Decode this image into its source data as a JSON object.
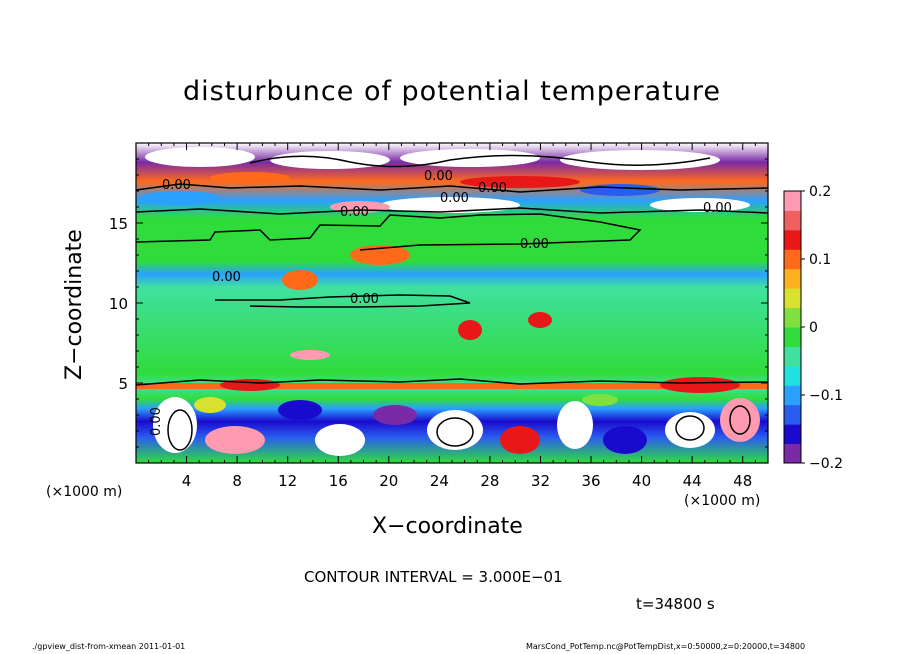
{
  "title": "disturbunce of potential temperature",
  "xlabel": "X−coordinate",
  "ylabel": "Z−coordinate",
  "x_unit_left": "(×1000 m)",
  "x_unit_right": "(×1000 m)",
  "contour_interval_text": "CONTOUR INTERVAL = 3.000E−01",
  "time_text": "t=34800 s",
  "footer_left": "./gpview_dist-from-xmean   2011-01-01",
  "footer_right": "MarsCond_PotTemp.nc@PotTempDist,x=0:50000,z=0:20000,t=34800",
  "chart_data": {
    "type": "heatmap",
    "title": "disturbunce of potential temperature",
    "xlabel": "X−coordinate",
    "ylabel": "Z−coordinate",
    "xlim": [
      0,
      50
    ],
    "ylim": [
      0,
      20
    ],
    "x_ticks": [
      4,
      8,
      12,
      16,
      20,
      24,
      28,
      32,
      36,
      40,
      44,
      48
    ],
    "y_ticks": [
      5,
      10,
      15
    ],
    "colorbar": {
      "vmin": -0.2,
      "vmax": 0.2,
      "ticks": [
        0.2,
        0.1,
        0,
        -0.1,
        -0.2
      ],
      "tick_labels": [
        "0.2",
        "0.1",
        "0",
        "−0.1",
        "−0.2"
      ],
      "colors": [
        "#7a2aa6",
        "#1a0acd",
        "#2a5cf0",
        "#2aa0ff",
        "#22e0e0",
        "#40e0a0",
        "#30dc3c",
        "#80e040",
        "#d8e030",
        "#ffb020",
        "#ff6a1a",
        "#e81818",
        "#f06060",
        "#ff9ab0"
      ]
    },
    "contour_labels": [
      "0.00",
      "0.00",
      "0.00",
      "0.00",
      "0.00",
      "0.00",
      "0.00",
      "0.00",
      "0.00",
      "0.00"
    ],
    "bands": [
      {
        "z": [
          0,
          4.6
        ],
        "value": "mixed -0.2..0.2"
      },
      {
        "z": [
          4.6,
          15.5
        ],
        "value": "~0"
      },
      {
        "z": [
          15.5,
          20
        ],
        "value": "mixed -0.2..0.2"
      }
    ]
  }
}
